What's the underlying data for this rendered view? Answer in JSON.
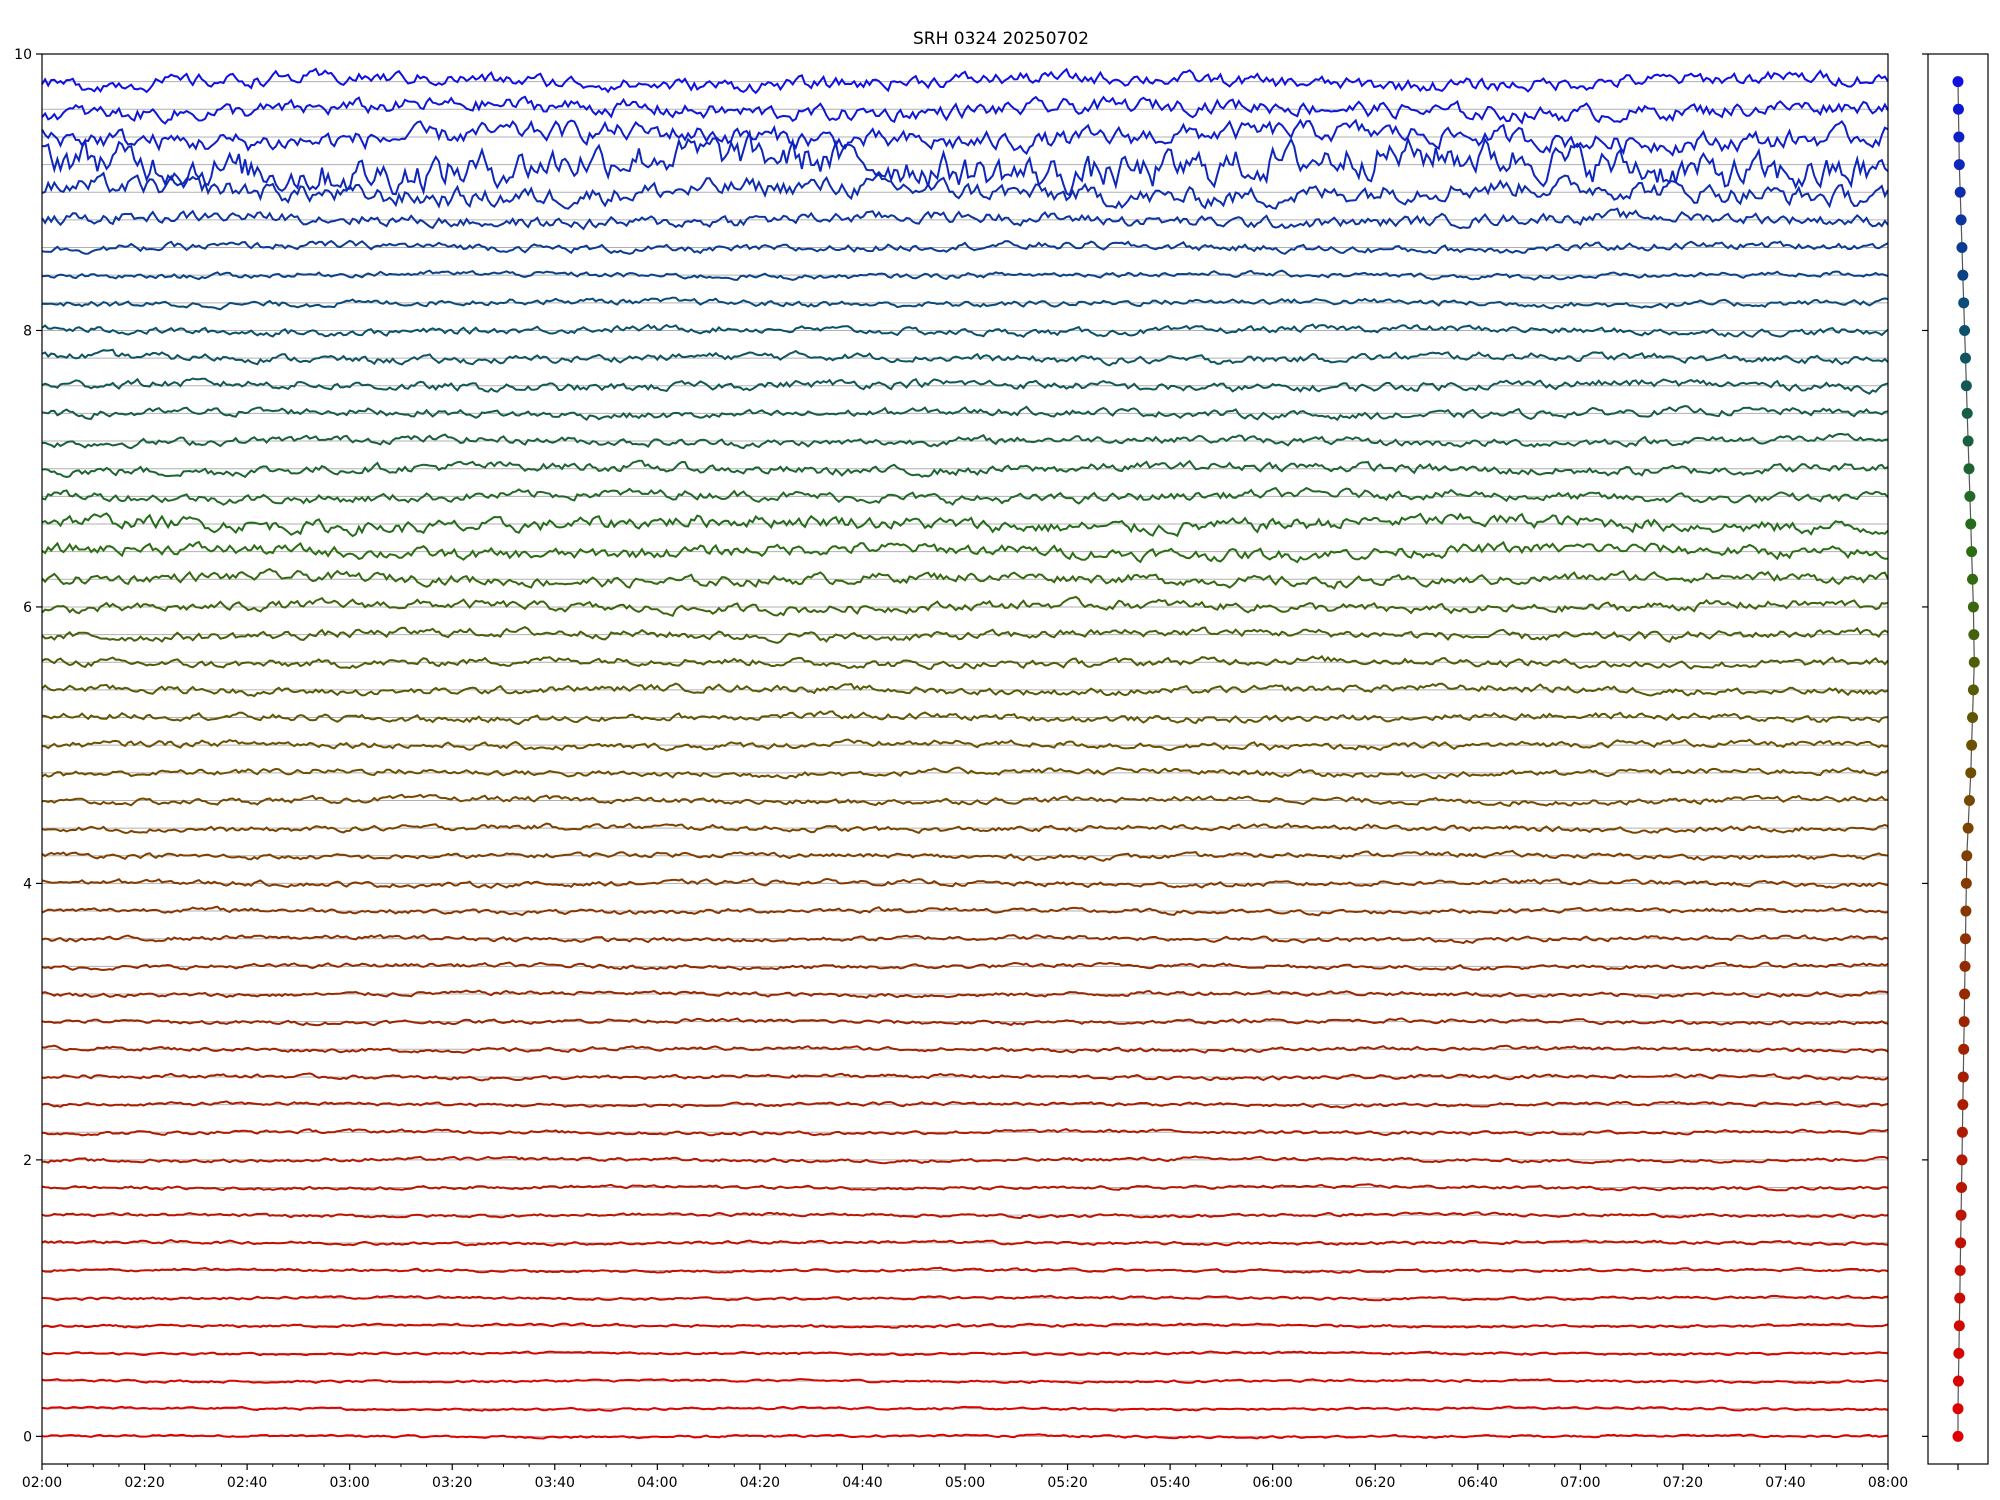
{
  "chart_data": [
    {
      "type": "line",
      "title": "SRH 0324 20250702",
      "xlabel": "",
      "ylabel": "",
      "x_range": [
        "02:00",
        "08:00"
      ],
      "ylim": [
        -0.2,
        10
      ],
      "xticks": [
        "02:00",
        "02:20",
        "02:40",
        "03:00",
        "03:20",
        "03:40",
        "04:00",
        "04:20",
        "04:40",
        "05:00",
        "05:20",
        "05:40",
        "06:00",
        "06:20",
        "06:40",
        "07:00",
        "07:20",
        "07:40",
        "08:00"
      ],
      "yticks": [
        "0",
        "2",
        "4",
        "6",
        "8",
        "10"
      ],
      "grid": "horizontal baselines",
      "legend": "none",
      "n_traces": 50,
      "trace_spacing": 0.2,
      "baseline_offsets": [
        0.0,
        0.2,
        0.2,
        0.21,
        0.22,
        0.24,
        0.26,
        0.28,
        0.3,
        0.32,
        0.34,
        0.36,
        0.38,
        0.4,
        0.42,
        0.44,
        0.46,
        0.48,
        0.5,
        0.52,
        0.44,
        0.46,
        0.48,
        0.5,
        0.52,
        0.54,
        0.56,
        0.58,
        0.56,
        0.54,
        0.52,
        0.5,
        0.48,
        0.46,
        0.44,
        0.42,
        0.4,
        0.38,
        0.36,
        0.34,
        0.32,
        0.3,
        0.28,
        0.26,
        0.24,
        0.22,
        0.2,
        0.2,
        0.2,
        0.2
      ],
      "trace_noise": [
        0.006,
        0.006,
        0.006,
        0.006,
        0.007,
        0.007,
        0.007,
        0.008,
        0.008,
        0.008,
        0.009,
        0.009,
        0.009,
        0.01,
        0.01,
        0.01,
        0.011,
        0.011,
        0.012,
        0.012,
        0.013,
        0.013,
        0.014,
        0.015,
        0.016,
        0.017,
        0.018,
        0.019,
        0.02,
        0.022,
        0.024,
        0.026,
        0.03,
        0.034,
        0.024,
        0.024,
        0.02,
        0.02,
        0.022,
        0.02,
        0.018,
        0.016,
        0.014,
        0.02,
        0.03,
        0.05,
        0.09,
        0.05,
        0.04,
        0.035
      ],
      "colors": {
        "bottom": "#e00000",
        "lower_middle": "#8b2500",
        "middle": "#6b5a00",
        "upper_middle": "#1f7a1f",
        "upper": "#0a4a7a",
        "top": "#1010e0",
        "connector": "#555555",
        "grid": "#b0b0b0"
      }
    },
    {
      "type": "scatter",
      "title": "",
      "xlabel": "",
      "ylabel": "",
      "description_values_y": "trace baselines 0 to 9.8 step 0.2",
      "x": [
        0.0,
        0.0,
        0.02,
        0.04,
        0.06,
        0.08,
        0.1,
        0.12,
        0.14,
        0.16,
        0.18,
        0.2,
        0.22,
        0.24,
        0.26,
        0.28,
        0.3,
        0.32,
        0.34,
        0.36,
        0.38,
        0.4,
        0.46,
        0.52,
        0.58,
        0.62,
        0.66,
        0.7,
        0.74,
        0.72,
        0.7,
        0.66,
        0.62,
        0.58,
        0.54,
        0.5,
        0.46,
        0.42,
        0.38,
        0.34,
        0.3,
        0.26,
        0.22,
        0.18,
        0.14,
        0.1,
        0.06,
        0.04,
        0.02,
        0.0
      ]
    }
  ]
}
